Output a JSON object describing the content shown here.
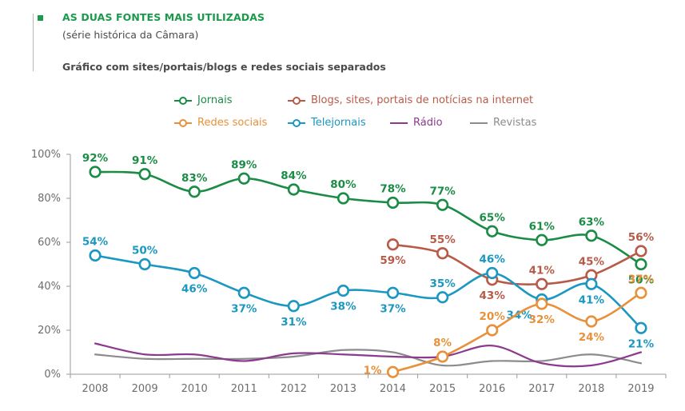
{
  "header": {
    "title": "AS DUAS FONTES MAIS UTILIZADAS",
    "subtitle": "(série histórica da Câmara)",
    "caption": "Gráfico com sites/portais/blogs e redes sociais separados"
  },
  "colors": {
    "accent": "#1a9a4a",
    "axis": "#9a9a9a",
    "tick_text": "#6d6d6d"
  },
  "chart_data": {
    "type": "line",
    "title": "AS DUAS FONTES MAIS UTILIZADAS",
    "subtitle": "(série histórica da Câmara)",
    "xlabel": "",
    "ylabel": "",
    "x": [
      "2008",
      "2009",
      "2010",
      "2011",
      "2012",
      "2013",
      "2014",
      "2015",
      "2016",
      "2017",
      "2018",
      "2019"
    ],
    "ylim": [
      0,
      100
    ],
    "yticks": [
      0,
      20,
      40,
      60,
      80,
      100
    ],
    "ytick_labels": [
      "0%",
      "20%",
      "40%",
      "60%",
      "80%",
      "100%"
    ],
    "grid": false,
    "legend_position": "top-center",
    "series": [
      {
        "name": "Jornais",
        "color": "#1a8c45",
        "markers": true,
        "values": [
          92,
          91,
          83,
          89,
          84,
          80,
          78,
          77,
          65,
          61,
          63,
          50
        ],
        "labels": [
          "92%",
          "91%",
          "83%",
          "89%",
          "84%",
          "80%",
          "78%",
          "77%",
          "65%",
          "61%",
          "63%",
          "50%"
        ]
      },
      {
        "name": "Blogs, sites, portais de notícias na internet",
        "color": "#b85a48",
        "markers": true,
        "values": [
          null,
          null,
          null,
          null,
          null,
          null,
          59,
          55,
          43,
          41,
          45,
          56
        ],
        "labels": [
          null,
          null,
          null,
          null,
          null,
          null,
          "59%",
          "55%",
          "43%",
          "41%",
          "45%",
          "56%"
        ]
      },
      {
        "name": "Redes sociais",
        "color": "#e8913a",
        "markers": true,
        "values": [
          null,
          null,
          null,
          null,
          null,
          null,
          1,
          8,
          20,
          32,
          24,
          37
        ],
        "labels": [
          null,
          null,
          null,
          null,
          null,
          null,
          "1%",
          "8%",
          "20%",
          "32%",
          "24%",
          "37%"
        ]
      },
      {
        "name": "Telejornais",
        "color": "#1b97c1",
        "markers": true,
        "values": [
          54,
          50,
          46,
          37,
          31,
          38,
          37,
          35,
          46,
          34,
          41,
          21
        ],
        "labels": [
          "54%",
          "50%",
          "46%",
          "37%",
          "31%",
          "38%",
          "37%",
          "35%",
          "46%",
          "34%",
          "41%",
          "21%"
        ]
      },
      {
        "name": "Rádio",
        "color": "#8b3a8e",
        "markers": false,
        "values": [
          14,
          9,
          9,
          6,
          9.5,
          9,
          8,
          8,
          13,
          5,
          4,
          10
        ],
        "labels": []
      },
      {
        "name": "Revistas",
        "color": "#8c8c8c",
        "markers": false,
        "values": [
          9,
          7,
          7,
          7,
          8,
          11,
          10,
          4,
          6,
          6,
          9,
          5
        ],
        "labels": []
      }
    ]
  }
}
